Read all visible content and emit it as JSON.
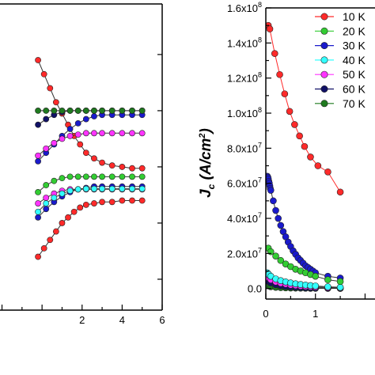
{
  "chart_data": [
    {
      "type": "scatter",
      "title": "",
      "xlabel": "",
      "ylabel": "",
      "xlim": [
        -2.1,
        6
      ],
      "ylim": [
        -5.1,
        5.8
      ],
      "grid": false,
      "x_ticks": [
        2,
        4,
        6
      ],
      "x_tick_labels": [
        "2",
        "4",
        "6"
      ],
      "series": [
        {
          "color": "#ff2a2a",
          "x": [
            -0.2,
            0.1,
            0.4,
            0.7,
            1.0,
            1.3,
            1.6,
            1.9,
            2.2,
            2.6,
            3.0,
            3.5,
            4.0,
            4.5,
            5.0
          ],
          "y": [
            3.8,
            3.3,
            2.8,
            2.3,
            1.9,
            1.5,
            1.1,
            0.8,
            0.5,
            0.3,
            0.15,
            0.05,
            0.0,
            -0.05,
            -0.05
          ]
        },
        {
          "color": "#ff2a2a",
          "x": [
            -0.2,
            0.1,
            0.4,
            0.7,
            1.0,
            1.3,
            1.6,
            1.9,
            2.2,
            2.6,
            3.0,
            3.5,
            4.0,
            4.5,
            5.0
          ],
          "y": [
            -3.2,
            -2.9,
            -2.6,
            -2.3,
            -2.0,
            -1.8,
            -1.6,
            -1.45,
            -1.35,
            -1.3,
            -1.25,
            -1.25,
            -1.2,
            -1.2,
            -1.2
          ]
        },
        {
          "color": "#1a1acc",
          "x": [
            -0.2,
            0.2,
            0.6,
            1.0,
            1.4,
            1.8,
            2.2,
            2.6,
            3.0,
            3.5,
            4.0,
            4.5,
            5.0
          ],
          "y": [
            0.2,
            0.5,
            0.8,
            1.1,
            1.35,
            1.55,
            1.7,
            1.8,
            1.85,
            1.85,
            1.85,
            1.85,
            1.85
          ]
        },
        {
          "color": "#1a1acc",
          "x": [
            -0.2,
            0.2,
            0.6,
            1.0,
            1.4,
            1.8,
            2.2,
            2.6,
            3.0,
            3.5,
            4.0,
            4.5,
            5.0
          ],
          "y": [
            -1.8,
            -1.5,
            -1.25,
            -1.05,
            -0.9,
            -0.8,
            -0.75,
            -0.7,
            -0.7,
            -0.7,
            -0.7,
            -0.7,
            -0.7
          ]
        },
        {
          "color": "#ff33ff",
          "x": [
            -0.2,
            0.2,
            0.6,
            1.0,
            1.4,
            1.8,
            2.2,
            2.6,
            3.0,
            3.5,
            4.0,
            4.5,
            5.0
          ],
          "y": [
            0.4,
            0.65,
            0.85,
            1.0,
            1.1,
            1.15,
            1.2,
            1.2,
            1.2,
            1.2,
            1.2,
            1.2,
            1.2
          ]
        },
        {
          "color": "#ff33ff",
          "x": [
            -0.2,
            0.2,
            0.6,
            1.0,
            1.4,
            1.8,
            2.2,
            2.6,
            3.0,
            3.5,
            4.0,
            4.5,
            5.0
          ],
          "y": [
            -1.3,
            -1.1,
            -0.95,
            -0.85,
            -0.8,
            -0.8,
            -0.8,
            -0.8,
            -0.8,
            -0.8,
            -0.8,
            -0.8,
            -0.8
          ]
        },
        {
          "color": "#33cc33",
          "x": [
            -0.2,
            0.2,
            0.6,
            1.0,
            1.4,
            1.8,
            2.2,
            2.6,
            3.0,
            3.5,
            4.0,
            4.5,
            5.0
          ],
          "y": [
            -0.9,
            -0.65,
            -0.5,
            -0.4,
            -0.35,
            -0.35,
            -0.35,
            -0.35,
            -0.35,
            -0.35,
            -0.35,
            -0.35,
            -0.35
          ]
        },
        {
          "color": "#33ffff",
          "x": [
            -0.2,
            0.2,
            0.6,
            1.0,
            1.4,
            1.8,
            2.2,
            2.6,
            3.0,
            3.5,
            4.0,
            4.5,
            5.0
          ],
          "y": [
            -1.6,
            -1.3,
            -1.1,
            -0.95,
            -0.85,
            -0.8,
            -0.78,
            -0.78,
            -0.78,
            -0.78,
            -0.78,
            -0.78,
            -0.78
          ]
        },
        {
          "color": "#111166",
          "x": [
            -0.2,
            0.2,
            0.6,
            1.0,
            1.4,
            1.8,
            2.2,
            2.6,
            3.0,
            3.5,
            4.0,
            4.5,
            5.0
          ],
          "y": [
            1.5,
            1.7,
            1.85,
            1.95,
            2.0,
            2.0,
            2.0,
            2.0,
            2.0,
            2.0,
            2.0,
            2.0,
            2.0
          ]
        },
        {
          "color": "#1f7a1f",
          "x": [
            -0.2,
            0.2,
            0.6,
            1.0,
            1.4,
            1.8,
            2.2,
            2.6,
            3.0,
            3.5,
            4.0,
            4.5,
            5.0
          ],
          "y": [
            2.0,
            2.0,
            2.0,
            2.0,
            2.0,
            2.0,
            2.0,
            2.0,
            2.0,
            2.0,
            2.0,
            2.0,
            2.0
          ]
        }
      ]
    },
    {
      "type": "scatter",
      "title": "",
      "xlabel": "",
      "ylabel": "J_c (A/cm²)",
      "ylabel_main": "J",
      "ylabel_sub": "c",
      "ylabel_unit": "(A/cm",
      "ylabel_sup": "2",
      "ylabel_close": ")",
      "xlim": [
        0,
        2.2
      ],
      "ylim": [
        -6000000.0,
        160000000.0
      ],
      "grid": false,
      "legend": "top-right",
      "y_ticks": [
        0,
        20000000.0,
        40000000.0,
        60000000.0,
        80000000.0,
        100000000.0,
        120000000.0,
        140000000.0,
        160000000.0
      ],
      "y_tick_labels": [
        {
          "mant": "0.0",
          "exp": ""
        },
        {
          "mant": "2.0x10",
          "exp": "7"
        },
        {
          "mant": "4.0x10",
          "exp": "7"
        },
        {
          "mant": "6.0x10",
          "exp": "7"
        },
        {
          "mant": "8.0x10",
          "exp": "7"
        },
        {
          "mant": "1.0x10",
          "exp": "8"
        },
        {
          "mant": "1.2x10",
          "exp": "8"
        },
        {
          "mant": "1.4x10",
          "exp": "8"
        },
        {
          "mant": "1.6x10",
          "exp": "8"
        }
      ],
      "x_ticks": [
        0,
        1
      ],
      "x_tick_labels": [
        "0",
        "1"
      ],
      "series": [
        {
          "name": "10 K",
          "color": "#ff2a2a",
          "x": [
            0.05,
            0.08,
            0.18,
            0.28,
            0.38,
            0.48,
            0.58,
            0.68,
            0.78,
            0.9,
            1.05,
            1.25,
            1.5
          ],
          "y": [
            150000000.0,
            148000000.0,
            134000000.0,
            122000000.0,
            111000000.0,
            101000000.0,
            93500000.0,
            87000000.0,
            81000000.0,
            75000000.0,
            70000000.0,
            66500000.0,
            55000000.0
          ]
        },
        {
          "name": "20 K",
          "color": "#33cc33",
          "x": [
            0.05,
            0.1,
            0.2,
            0.3,
            0.4,
            0.5,
            0.6,
            0.7,
            0.8,
            0.9,
            1.0,
            1.25,
            1.5
          ],
          "y": [
            23000000.0,
            21000000.0,
            18500000.0,
            16000000.0,
            14000000.0,
            12500000.0,
            11000000.0,
            10000000.0,
            9000000.0,
            8000000.0,
            7000000.0,
            5000000.0,
            4000000.0
          ]
        },
        {
          "name": "30 K",
          "color": "#1a1acc",
          "x": [
            0.03,
            0.04,
            0.05,
            0.06,
            0.07,
            0.08,
            0.09,
            0.1,
            0.15,
            0.2,
            0.25,
            0.3,
            0.35,
            0.4,
            0.45,
            0.5,
            0.55,
            0.6,
            0.65,
            0.7,
            0.75,
            0.8,
            0.85,
            0.9,
            0.95,
            1.0,
            1.25,
            1.5
          ],
          "y": [
            64000000.0,
            63500000.0,
            62500000.0,
            61000000.0,
            60000000.0,
            58500000.0,
            57000000.0,
            56000000.0,
            50000000.0,
            44500000.0,
            40000000.0,
            36000000.0,
            32500000.0,
            29500000.0,
            26500000.0,
            24000000.0,
            21500000.0,
            19500000.0,
            17500000.0,
            16000000.0,
            14500000.0,
            13000000.0,
            12000000.0,
            11000000.0,
            10000000.0,
            9000000.0,
            7000000.0,
            6000000.0
          ]
        },
        {
          "name": "40 K",
          "color": "#33ffff",
          "x": [
            0.03,
            0.06,
            0.1,
            0.2,
            0.3,
            0.4,
            0.5,
            0.6,
            0.7,
            0.8,
            0.9,
            1.0,
            1.25,
            1.5
          ],
          "y": [
            9000000.0,
            8000000.0,
            7000000.0,
            5500000.0,
            4500000.0,
            3800000.0,
            3200000.0,
            2700000.0,
            2300000.0,
            2000000.0,
            1700000.0,
            1500000.0,
            1000000.0,
            700000.0
          ]
        },
        {
          "name": "50 K",
          "color": "#ff33ff",
          "x": [
            0.03,
            0.06,
            0.1,
            0.2,
            0.3,
            0.4,
            0.5,
            0.6,
            0.7,
            0.8,
            0.9,
            1.0,
            1.25,
            1.5
          ],
          "y": [
            7000000.0,
            6000000.0,
            5000000.0,
            3800000.0,
            3000000.0,
            2500000.0,
            2000000.0,
            1700000.0,
            1400000.0,
            1200000.0,
            1000000.0,
            900000.0,
            600000.0,
            400000.0
          ]
        },
        {
          "name": "60 K",
          "color": "#111166",
          "x": [
            0.03,
            0.06,
            0.1,
            0.2,
            0.3,
            0.4,
            0.5,
            0.6,
            0.7,
            0.8,
            0.9,
            1.0,
            1.25,
            1.5
          ],
          "y": [
            5000000.0,
            4000000.0,
            3200000.0,
            2200000.0,
            1600000.0,
            1200000.0,
            900000.0,
            700000.0,
            550000.0,
            450000.0,
            350000.0,
            300000.0,
            200000.0,
            150000.0
          ]
        },
        {
          "name": "70 K",
          "color": "#1f7a1f",
          "x": [
            0.03,
            0.06,
            0.1,
            0.2,
            0.3,
            0.4,
            0.5,
            0.6,
            0.7,
            0.8,
            0.9,
            1.0,
            1.25,
            1.5
          ],
          "y": [
            2000000.0,
            1500000.0,
            1000000.0,
            700000.0,
            500000.0,
            400000.0,
            300000.0,
            250000.0,
            200000.0,
            150000.0,
            120000.0,
            100000.0,
            80000.0,
            50000.0
          ]
        }
      ]
    }
  ]
}
